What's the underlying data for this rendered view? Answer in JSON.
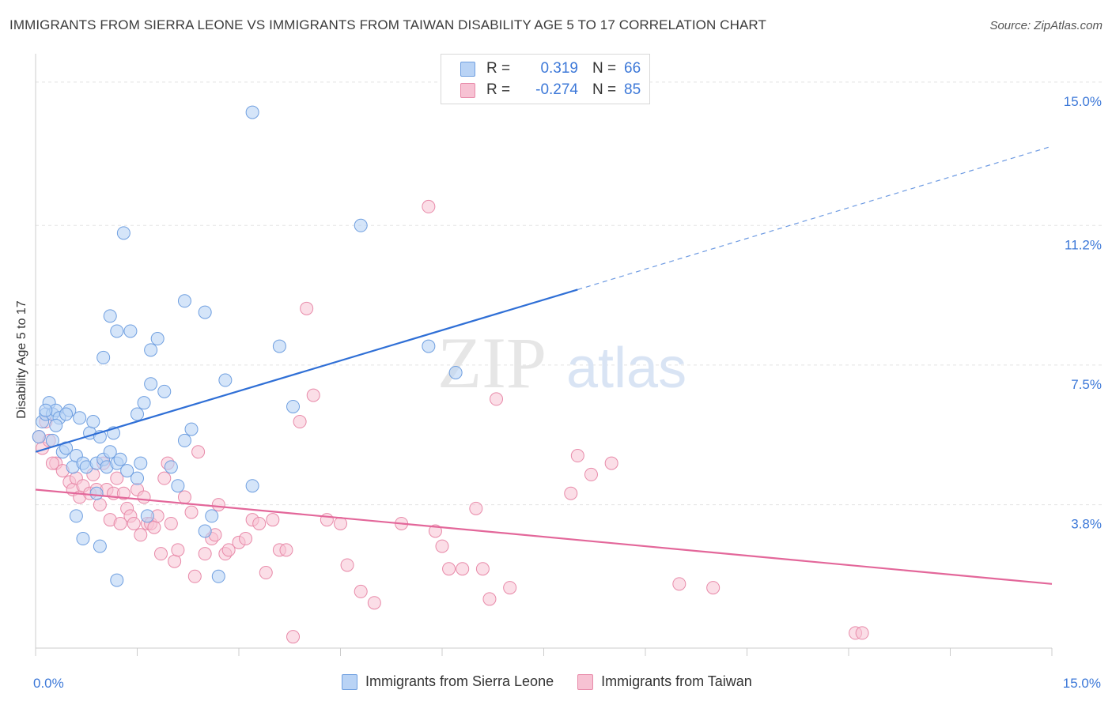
{
  "header": {
    "title": "IMMIGRANTS FROM SIERRA LEONE VS IMMIGRANTS FROM TAIWAN DISABILITY AGE 5 TO 17 CORRELATION CHART",
    "source": "Source: ZipAtlas.com"
  },
  "watermark": {
    "zip": "ZIP",
    "atlas": "atlas"
  },
  "legend": {
    "blue": {
      "r_label": "R =",
      "r_value": "0.319",
      "n_label": "N =",
      "n_value": "66"
    },
    "pink": {
      "r_label": "R =",
      "r_value": "-0.274",
      "n_label": "N =",
      "n_value": "85"
    }
  },
  "colors": {
    "blue_fill": "#b9d3f5",
    "blue_stroke": "#6f9fe0",
    "blue_line": "#2f6fd6",
    "pink_fill": "#f7c2d3",
    "pink_stroke": "#e88aa9",
    "pink_line": "#e3679a",
    "tick_label": "#3c78d8",
    "grid": "#e3e3e3"
  },
  "chart_data": {
    "type": "scatter",
    "title": "IMMIGRANTS FROM SIERRA LEONE VS IMMIGRANTS FROM TAIWAN DISABILITY AGE 5 TO 17 CORRELATION CHART",
    "xlabel": "",
    "ylabel": "Disability Age 5 to 17",
    "xlim": [
      0,
      15
    ],
    "ylim": [
      0,
      15.5
    ],
    "x_tick_labels": [
      {
        "value": 0,
        "label": "0.0%"
      },
      {
        "value": 15,
        "label": "15.0%"
      }
    ],
    "y_ticks": [
      {
        "value": 3.8,
        "label": "3.8%"
      },
      {
        "value": 7.5,
        "label": "7.5%"
      },
      {
        "value": 11.2,
        "label": "11.2%"
      },
      {
        "value": 15.0,
        "label": "15.0%"
      }
    ],
    "grid": true,
    "legend_position": "top-center",
    "series": [
      {
        "name": "Immigrants from Sierra Leone",
        "color": "#6f9fe0",
        "trend": {
          "x0": 0.0,
          "y0": 5.2,
          "x1": 8.0,
          "y1": 9.5,
          "dashed_to_x": 15.0,
          "dashed_to_y": 13.3
        },
        "points": [
          [
            0.1,
            6.0
          ],
          [
            0.15,
            6.2
          ],
          [
            0.2,
            6.5
          ],
          [
            0.25,
            6.2
          ],
          [
            0.3,
            6.3
          ],
          [
            0.35,
            6.1
          ],
          [
            0.4,
            5.2
          ],
          [
            0.45,
            5.3
          ],
          [
            0.5,
            6.3
          ],
          [
            0.55,
            4.8
          ],
          [
            0.6,
            5.1
          ],
          [
            0.65,
            6.1
          ],
          [
            0.7,
            4.9
          ],
          [
            0.75,
            4.8
          ],
          [
            0.8,
            5.7
          ],
          [
            0.85,
            6.0
          ],
          [
            0.9,
            4.9
          ],
          [
            0.95,
            5.6
          ],
          [
            1.0,
            5.0
          ],
          [
            1.05,
            4.8
          ],
          [
            1.1,
            5.2
          ],
          [
            1.15,
            5.7
          ],
          [
            1.2,
            4.9
          ],
          [
            1.25,
            5.0
          ],
          [
            0.6,
            3.5
          ],
          [
            0.7,
            2.9
          ],
          [
            0.9,
            4.1
          ],
          [
            0.95,
            2.7
          ],
          [
            1.0,
            7.7
          ],
          [
            1.1,
            8.8
          ],
          [
            1.2,
            8.4
          ],
          [
            1.3,
            11.0
          ],
          [
            1.35,
            4.7
          ],
          [
            1.2,
            1.8
          ],
          [
            1.4,
            8.4
          ],
          [
            1.5,
            6.2
          ],
          [
            1.55,
            4.9
          ],
          [
            1.6,
            6.5
          ],
          [
            1.7,
            7.0
          ],
          [
            1.65,
            3.5
          ],
          [
            1.5,
            4.5
          ],
          [
            1.7,
            7.9
          ],
          [
            1.8,
            8.2
          ],
          [
            1.9,
            6.8
          ],
          [
            2.0,
            4.8
          ],
          [
            2.1,
            4.3
          ],
          [
            2.2,
            5.5
          ],
          [
            2.2,
            9.2
          ],
          [
            2.3,
            5.8
          ],
          [
            2.5,
            3.1
          ],
          [
            2.5,
            8.9
          ],
          [
            2.6,
            3.5
          ],
          [
            2.7,
            1.9
          ],
          [
            2.8,
            7.1
          ],
          [
            3.2,
            4.3
          ],
          [
            3.2,
            14.2
          ],
          [
            3.6,
            8.0
          ],
          [
            3.8,
            6.4
          ],
          [
            4.8,
            11.2
          ],
          [
            5.8,
            8.0
          ],
          [
            6.2,
            7.3
          ],
          [
            0.05,
            5.6
          ],
          [
            0.25,
            5.5
          ],
          [
            0.45,
            6.2
          ],
          [
            0.3,
            5.9
          ],
          [
            0.15,
            6.3
          ]
        ]
      },
      {
        "name": "Immigrants from Taiwan",
        "color": "#e88aa9",
        "trend": {
          "x0": 0.0,
          "y0": 4.2,
          "x1": 15.0,
          "y1": 1.7
        },
        "points": [
          [
            0.05,
            5.6
          ],
          [
            0.1,
            5.3
          ],
          [
            0.2,
            5.5
          ],
          [
            0.3,
            4.9
          ],
          [
            0.4,
            4.7
          ],
          [
            0.5,
            4.4
          ],
          [
            0.55,
            4.2
          ],
          [
            0.6,
            4.5
          ],
          [
            0.65,
            4.0
          ],
          [
            0.7,
            4.3
          ],
          [
            0.8,
            4.1
          ],
          [
            0.85,
            4.6
          ],
          [
            0.9,
            4.2
          ],
          [
            0.95,
            3.8
          ],
          [
            1.0,
            4.9
          ],
          [
            1.05,
            4.2
          ],
          [
            1.1,
            3.4
          ],
          [
            1.15,
            4.1
          ],
          [
            1.2,
            4.5
          ],
          [
            1.25,
            3.3
          ],
          [
            1.3,
            4.1
          ],
          [
            1.35,
            3.7
          ],
          [
            1.4,
            3.5
          ],
          [
            1.45,
            3.3
          ],
          [
            1.5,
            4.2
          ],
          [
            1.55,
            3.0
          ],
          [
            1.6,
            4.0
          ],
          [
            1.65,
            3.3
          ],
          [
            1.7,
            3.3
          ],
          [
            1.75,
            3.2
          ],
          [
            1.8,
            3.5
          ],
          [
            1.85,
            2.5
          ],
          [
            1.9,
            4.5
          ],
          [
            1.95,
            4.9
          ],
          [
            2.0,
            3.3
          ],
          [
            2.05,
            2.3
          ],
          [
            2.1,
            2.6
          ],
          [
            2.2,
            4.0
          ],
          [
            2.3,
            3.6
          ],
          [
            2.35,
            1.9
          ],
          [
            2.4,
            5.2
          ],
          [
            2.5,
            2.5
          ],
          [
            2.6,
            2.9
          ],
          [
            2.65,
            3.0
          ],
          [
            2.7,
            3.8
          ],
          [
            2.8,
            2.5
          ],
          [
            2.85,
            2.6
          ],
          [
            3.0,
            2.8
          ],
          [
            3.1,
            2.9
          ],
          [
            3.2,
            3.4
          ],
          [
            3.3,
            3.3
          ],
          [
            3.4,
            2.0
          ],
          [
            3.5,
            3.4
          ],
          [
            3.6,
            2.6
          ],
          [
            3.7,
            2.6
          ],
          [
            3.8,
            0.3
          ],
          [
            3.9,
            6.0
          ],
          [
            4.0,
            9.0
          ],
          [
            4.1,
            6.7
          ],
          [
            4.3,
            3.4
          ],
          [
            4.5,
            3.3
          ],
          [
            4.6,
            2.2
          ],
          [
            4.8,
            1.5
          ],
          [
            5.0,
            1.2
          ],
          [
            5.4,
            3.3
          ],
          [
            5.8,
            11.7
          ],
          [
            5.9,
            3.1
          ],
          [
            6.0,
            2.7
          ],
          [
            6.1,
            2.1
          ],
          [
            6.3,
            2.1
          ],
          [
            6.5,
            3.7
          ],
          [
            6.6,
            2.1
          ],
          [
            6.7,
            1.3
          ],
          [
            6.8,
            6.6
          ],
          [
            7.0,
            1.6
          ],
          [
            7.9,
            4.1
          ],
          [
            8.0,
            5.1
          ],
          [
            8.2,
            4.6
          ],
          [
            8.5,
            4.9
          ],
          [
            9.5,
            1.7
          ],
          [
            10.0,
            1.6
          ],
          [
            12.1,
            0.4
          ],
          [
            12.2,
            0.4
          ],
          [
            0.15,
            6.0
          ],
          [
            0.25,
            4.9
          ]
        ]
      }
    ]
  },
  "bottom_legend": {
    "blue_label": "Immigrants from Sierra Leone",
    "pink_label": "Immigrants from Taiwan"
  }
}
